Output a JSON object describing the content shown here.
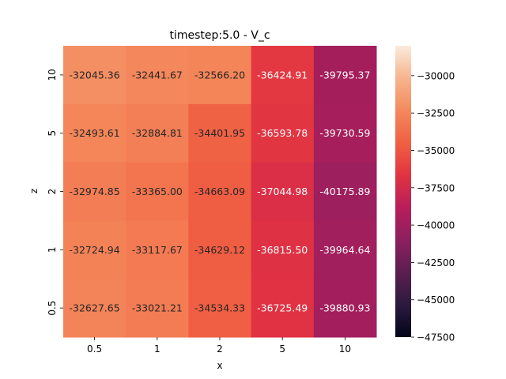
{
  "chart_data": {
    "type": "heatmap",
    "title": "timestep:5.0 - V_c",
    "xlabel": "x",
    "ylabel": "z",
    "x_categories": [
      "0.5",
      "1",
      "2",
      "5",
      "10"
    ],
    "y_categories": [
      "10",
      "5",
      "2",
      "1",
      "0.5"
    ],
    "values": [
      [
        -32045.36,
        -32441.67,
        -32566.2,
        -36424.91,
        -39795.37
      ],
      [
        -32493.61,
        -32884.81,
        -34401.95,
        -36593.78,
        -39730.59
      ],
      [
        -32974.85,
        -33365.0,
        -34663.09,
        -37044.98,
        -40175.89
      ],
      [
        -32724.94,
        -33117.67,
        -34629.12,
        -36815.5,
        -39964.64
      ],
      [
        -32627.65,
        -33021.21,
        -34534.33,
        -36725.49,
        -39880.93
      ]
    ],
    "value_labels": [
      [
        "-32045.36",
        "-32441.67",
        "-32566.20",
        "-36424.91",
        "-39795.37"
      ],
      [
        "-32493.61",
        "-32884.81",
        "-34401.95",
        "-36593.78",
        "-39730.59"
      ],
      [
        "-32974.85",
        "-33365.00",
        "-34663.09",
        "-37044.98",
        "-40175.89"
      ],
      [
        "-32724.94",
        "-33117.67",
        "-34629.12",
        "-36815.50",
        "-39964.64"
      ],
      [
        "-32627.65",
        "-33021.21",
        "-34534.33",
        "-36725.49",
        "-39880.93"
      ]
    ],
    "colorbar": {
      "range": [
        -47500,
        -28000
      ],
      "ticks": [
        -30000,
        -32500,
        -35000,
        -37500,
        -40000,
        -42500,
        -45000,
        -47500
      ],
      "tick_labels": [
        "−30000",
        "−32500",
        "−35000",
        "−37500",
        "−40000",
        "−42500",
        "−45000",
        "−47500"
      ],
      "colormap": [
        "#03051a",
        "#2b1a3e",
        "#5b1e51",
        "#8d1f5f",
        "#b81e5a",
        "#e13342",
        "#f06043",
        "#f4895c",
        "#f6b48e",
        "#faebdd"
      ]
    }
  }
}
